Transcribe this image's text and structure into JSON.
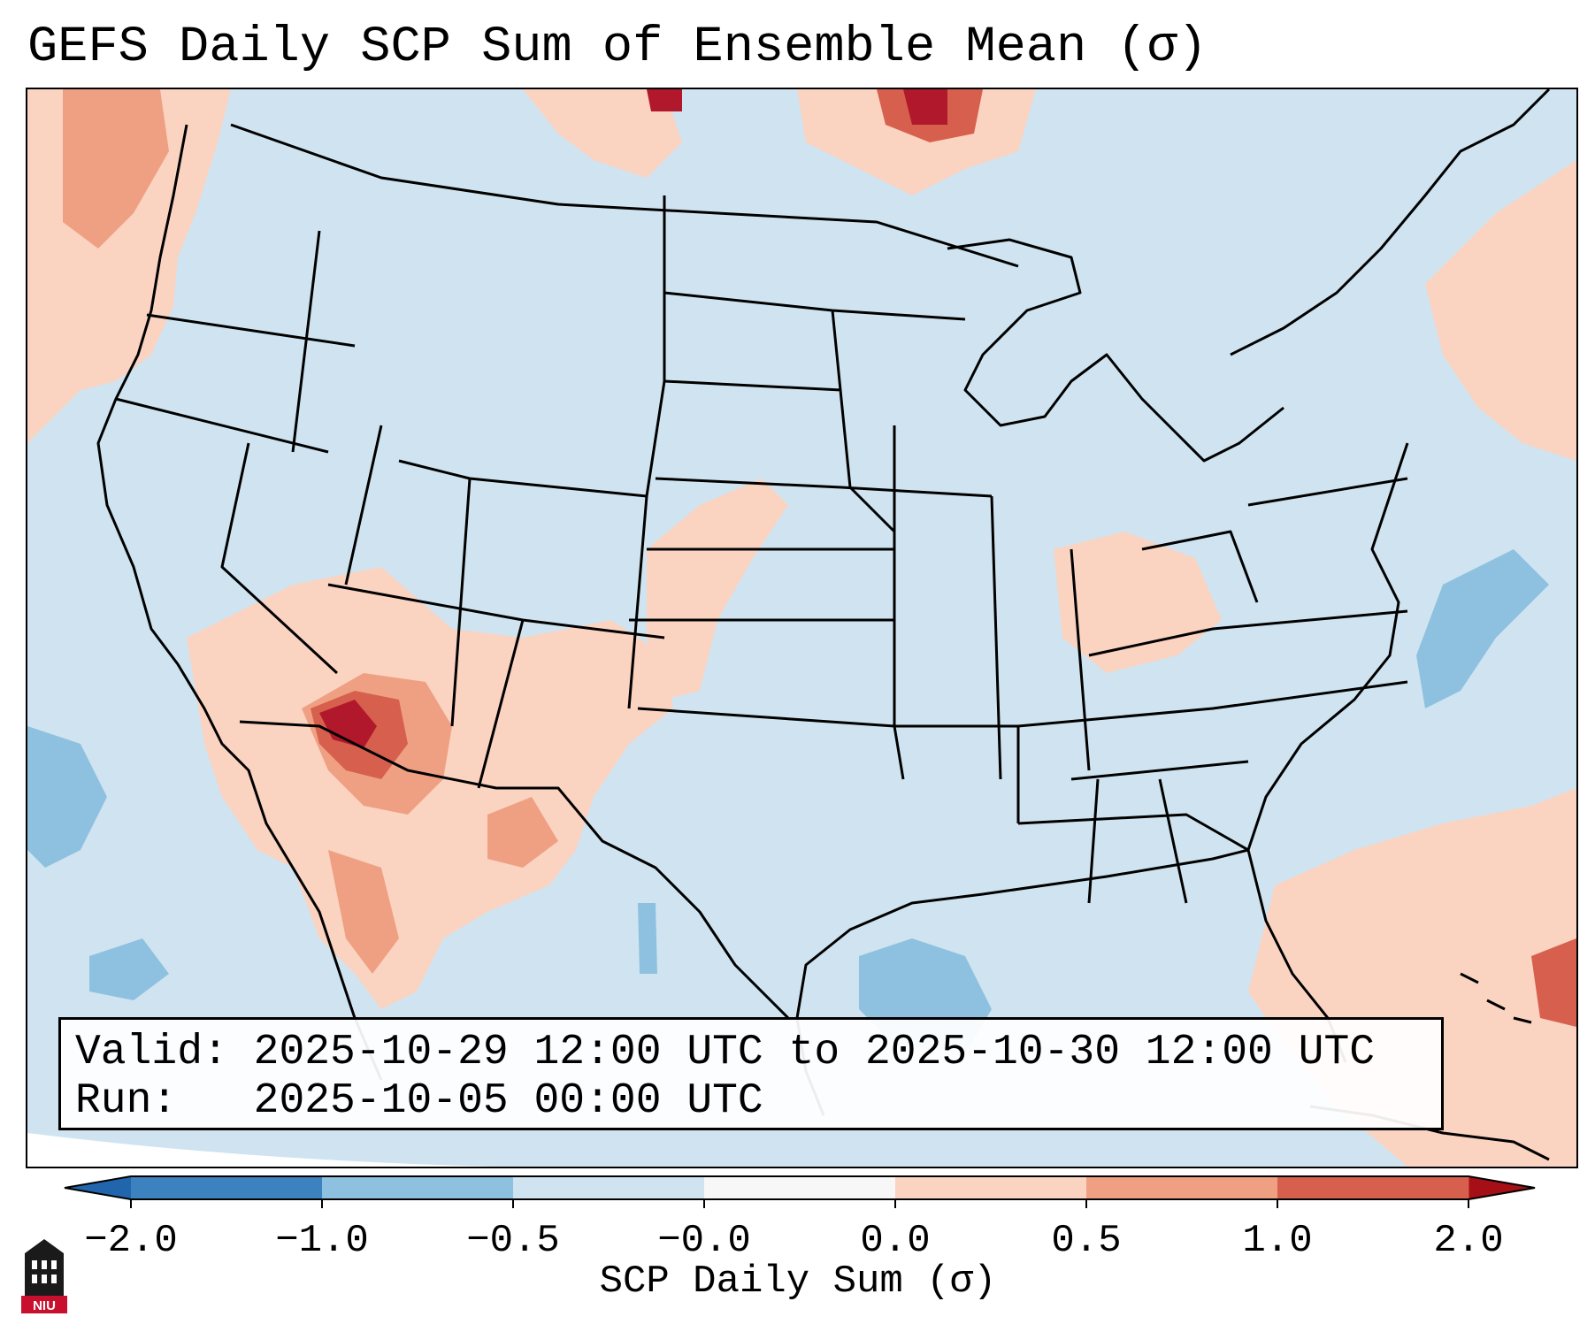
{
  "title": "GEFS Daily SCP Sum of Ensemble Mean (σ)",
  "info": {
    "valid_label": "Valid:",
    "valid_value": "2025-10-29 12:00 UTC to 2025-10-30 12:00 UTC",
    "run_label": "Run:",
    "run_value": "2025-10-05 00:00 UTC"
  },
  "colorbar": {
    "label": "SCP Daily Sum (σ)",
    "ticks": [
      "−2.0",
      "−1.0",
      "−0.5",
      "−0.0",
      "0.0",
      "0.5",
      "1.0",
      "2.0"
    ],
    "colors": [
      "#3b82bf",
      "#8ec1df",
      "#cfe4f0",
      "#f7f7f7",
      "#fbd3c1",
      "#efa083",
      "#d6604d",
      "#b2182b"
    ],
    "extend_min_color": "#2166ac",
    "extend_max_color": "#a50f15"
  },
  "map": {
    "region": "Contiguous United States",
    "background_color": "#cfe4f0",
    "outside_projection_color": "#ffffff"
  },
  "logo": {
    "text": "NIU",
    "color": "#c8102e"
  }
}
